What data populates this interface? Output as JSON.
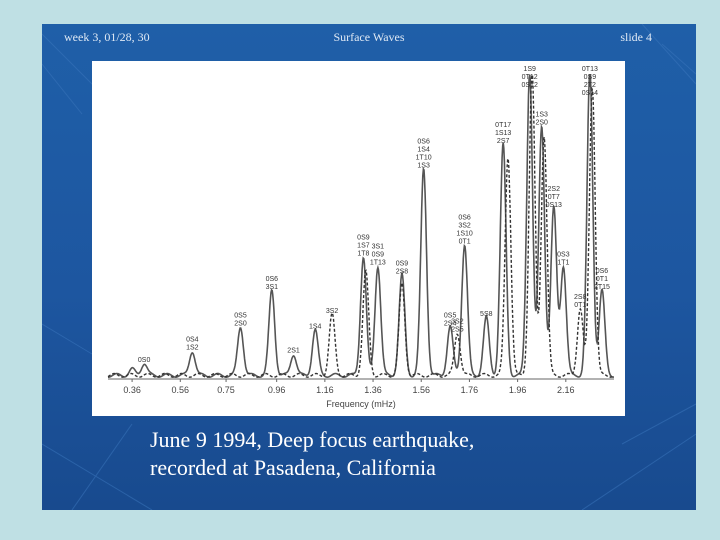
{
  "slide": {
    "header_left": "week 3, 01/28, 30",
    "header_title": "Surface Waves",
    "header_right": "slide 4",
    "caption_line1": "June 9 1994, Deep focus earthquake,",
    "caption_line2": "recorded at Pasadena, California"
  },
  "colors": {
    "page_background": "#bfe0e4",
    "slide_background": "#1d56a0",
    "chart_background": "#ffffff",
    "trace": "#555555",
    "text": "#ffffff"
  },
  "chart_data": {
    "type": "line",
    "title": "",
    "xlabel": "Frequency (mHz)",
    "ylabel": "",
    "xlim": [
      0.26,
      2.36
    ],
    "ylim": [
      0,
      1
    ],
    "x_ticks": [
      "0.36",
      "0.56",
      "0.75",
      "0.96",
      "1.16",
      "1.36",
      "1.56",
      "1.76",
      "1.96",
      "2.16"
    ],
    "grid": false,
    "series": [
      {
        "style": "solid",
        "peaks": [
          {
            "x": 0.36,
            "y": 0.02
          },
          {
            "x": 0.41,
            "y": 0.04,
            "label": [
              "0S0"
            ]
          },
          {
            "x": 0.61,
            "y": 0.08,
            "label": [
              "0S4",
              "1S2"
            ]
          },
          {
            "x": 0.81,
            "y": 0.16,
            "label": [
              "0S5",
              "2S0"
            ]
          },
          {
            "x": 0.94,
            "y": 0.28,
            "label": [
              "0S6",
              "3S1"
            ]
          },
          {
            "x": 1.03,
            "y": 0.07,
            "label": [
              "2S1"
            ]
          },
          {
            "x": 1.12,
            "y": 0.15,
            "label": [
              "1S4"
            ]
          },
          {
            "x": 1.32,
            "y": 0.39,
            "label": [
              "0S9",
              "1S7",
              "1T8"
            ]
          },
          {
            "x": 1.38,
            "y": 0.36,
            "label": [
              "3S1",
              "0S9",
              "1T13"
            ]
          },
          {
            "x": 1.48,
            "y": 0.33,
            "label": [
              "0S9",
              "2S8"
            ]
          },
          {
            "x": 1.57,
            "y": 0.68,
            "label": [
              "0S6",
              "1S4",
              "1T10",
              "1S3"
            ]
          },
          {
            "x": 1.68,
            "y": 0.16,
            "label": [
              "0S5",
              "2S4"
            ]
          },
          {
            "x": 1.74,
            "y": 0.43,
            "label": [
              "0S6",
              "3S2",
              "1S10",
              "0T1"
            ]
          },
          {
            "x": 1.83,
            "y": 0.19,
            "label": [
              "5S8"
            ]
          },
          {
            "x": 1.9,
            "y": 0.76,
            "label": [
              "0T17",
              "1S13",
              "2S7"
            ]
          },
          {
            "x": 2.01,
            "y": 1.0,
            "label": [
              "1S9",
              "0T12",
              "0S12"
            ]
          },
          {
            "x": 2.06,
            "y": 0.82,
            "label": [
              "1S3",
              "2S0"
            ]
          },
          {
            "x": 2.11,
            "y": 0.55,
            "label": [
              "2S2",
              "0T7",
              "0S13"
            ]
          },
          {
            "x": 2.15,
            "y": 0.36,
            "label": [
              "0S3",
              "1T1"
            ]
          },
          {
            "x": 2.26,
            "y": 1.0,
            "label": [
              "0T13",
              "0S9",
              "2T2",
              "0S14"
            ]
          },
          {
            "x": 2.31,
            "y": 0.28,
            "label": [
              "0S6",
              "0T1",
              "2T15"
            ]
          }
        ]
      },
      {
        "style": "dashed",
        "peaks": [
          {
            "x": 1.19,
            "y": 0.2,
            "label": [
              "3S2"
            ]
          },
          {
            "x": 1.33,
            "y": 0.34
          },
          {
            "x": 1.48,
            "y": 0.3
          },
          {
            "x": 1.71,
            "y": 0.14,
            "label": [
              "3S2",
              "2S5"
            ]
          },
          {
            "x": 1.92,
            "y": 0.72
          },
          {
            "x": 2.02,
            "y": 1.0
          },
          {
            "x": 2.07,
            "y": 0.79
          },
          {
            "x": 2.22,
            "y": 0.22,
            "label": [
              "2S8",
              "0T1"
            ]
          },
          {
            "x": 2.27,
            "y": 0.95
          }
        ]
      }
    ]
  }
}
